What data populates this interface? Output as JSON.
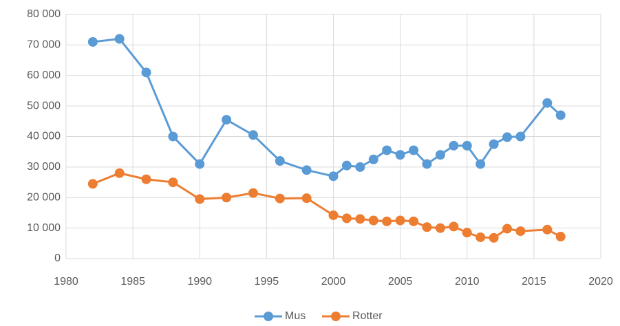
{
  "chart_data": {
    "type": "line",
    "x": [
      1982,
      1984,
      1986,
      1988,
      1990,
      1992,
      1994,
      1996,
      1998,
      2000,
      2001,
      2002,
      2003,
      2004,
      2005,
      2006,
      2007,
      2008,
      2009,
      2010,
      2011,
      2012,
      2013,
      2014,
      2016,
      2017
    ],
    "series": [
      {
        "name": "Mus",
        "color": "#5b9bd5",
        "values": [
          71000,
          72000,
          61000,
          40000,
          31000,
          45500,
          40500,
          32000,
          29000,
          27000,
          30500,
          30000,
          32500,
          35500,
          34000,
          35500,
          31000,
          34000,
          37000,
          37000,
          31000,
          37500,
          39800,
          40000,
          51000,
          47000
        ]
      },
      {
        "name": "Rotter",
        "color": "#ed7d31",
        "values": [
          24500,
          28000,
          26000,
          25000,
          19500,
          20000,
          21500,
          19700,
          19800,
          14200,
          13200,
          13000,
          12500,
          12200,
          12500,
          12200,
          10300,
          10000,
          10500,
          8500,
          7000,
          6800,
          9800,
          9000,
          9500,
          7200
        ]
      }
    ],
    "xlim": [
      1980,
      2020
    ],
    "xticks": [
      1980,
      1985,
      1990,
      1995,
      2000,
      2005,
      2010,
      2015,
      2020
    ],
    "ylim": [
      0,
      80000
    ],
    "yticks": [
      0,
      {
        "value": 10000,
        "label": "10 000"
      },
      {
        "value": 20000,
        "label": "20 000"
      },
      {
        "value": 30000,
        "label": "30 000"
      },
      {
        "value": 40000,
        "label": "40 000"
      },
      {
        "value": 50000,
        "label": "50 000"
      },
      {
        "value": 60000,
        "label": "60 000"
      },
      {
        "value": 70000,
        "label": "70 000"
      },
      {
        "value": 80000,
        "label": "80 000"
      }
    ],
    "grid": true,
    "legend": "bottom"
  }
}
